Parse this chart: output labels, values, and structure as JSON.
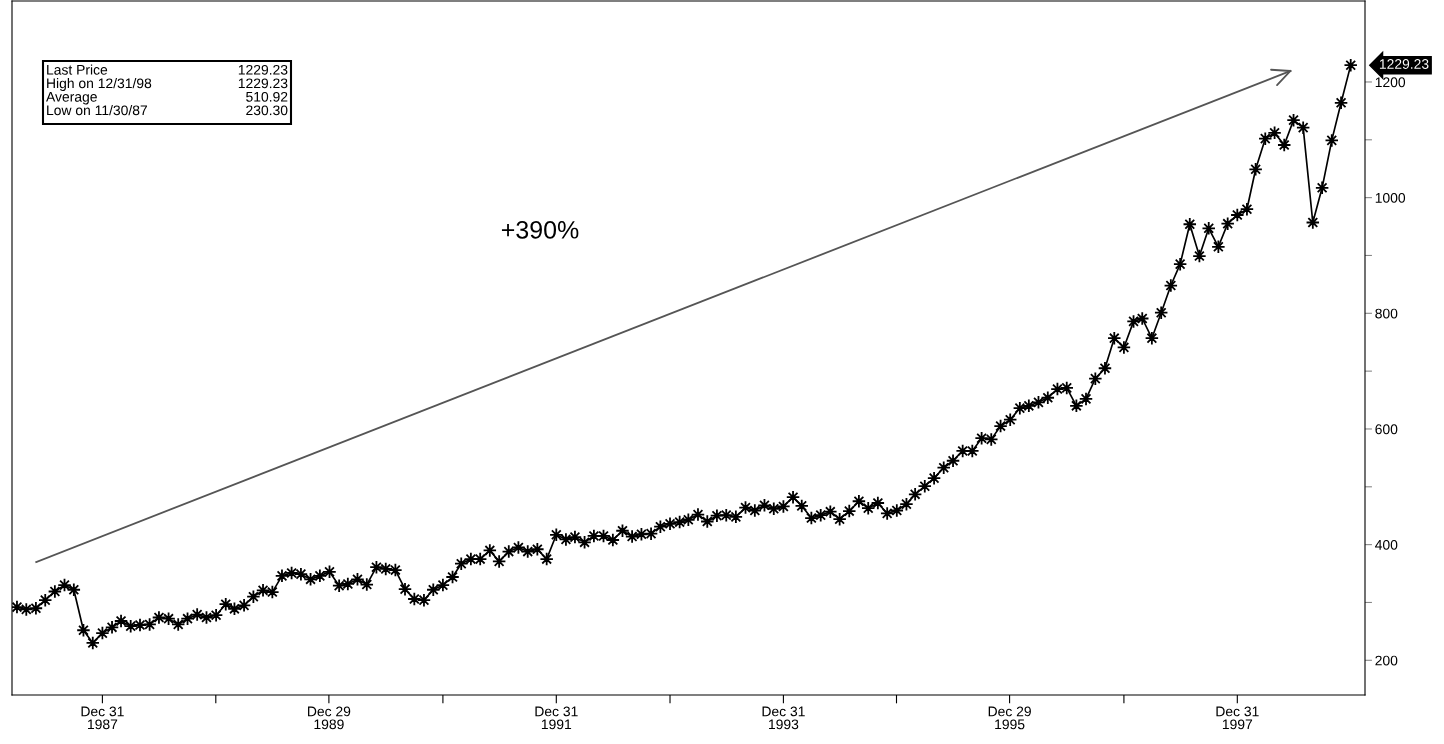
{
  "chart_data": {
    "type": "line",
    "grid": false,
    "x": [
      "1987-03-31",
      "1987-04-30",
      "1987-05-31",
      "1987-06-30",
      "1987-07-31",
      "1987-08-31",
      "1987-09-30",
      "1987-10-31",
      "1987-11-30",
      "1987-12-31",
      "1988-01-31",
      "1988-02-29",
      "1988-03-31",
      "1988-04-30",
      "1988-05-31",
      "1988-06-30",
      "1988-07-31",
      "1988-08-31",
      "1988-09-30",
      "1988-10-31",
      "1988-11-30",
      "1988-12-31",
      "1989-01-31",
      "1989-02-28",
      "1989-03-31",
      "1989-04-30",
      "1989-05-31",
      "1989-06-30",
      "1989-07-31",
      "1989-08-31",
      "1989-09-30",
      "1989-10-31",
      "1989-11-30",
      "1989-12-31",
      "1990-01-31",
      "1990-02-28",
      "1990-03-31",
      "1990-04-30",
      "1990-05-31",
      "1990-06-30",
      "1990-07-31",
      "1990-08-31",
      "1990-09-30",
      "1990-10-31",
      "1990-11-30",
      "1990-12-31",
      "1991-01-31",
      "1991-02-28",
      "1991-03-31",
      "1991-04-30",
      "1991-05-31",
      "1991-06-30",
      "1991-07-31",
      "1991-08-31",
      "1991-09-30",
      "1991-10-31",
      "1991-11-30",
      "1991-12-31",
      "1992-01-31",
      "1992-02-29",
      "1992-03-31",
      "1992-04-30",
      "1992-05-31",
      "1992-06-30",
      "1992-07-31",
      "1992-08-31",
      "1992-09-30",
      "1992-10-31",
      "1992-11-30",
      "1992-12-31",
      "1993-01-31",
      "1993-02-28",
      "1993-03-31",
      "1993-04-30",
      "1993-05-31",
      "1993-06-30",
      "1993-07-31",
      "1993-08-31",
      "1993-09-30",
      "1993-10-31",
      "1993-11-30",
      "1993-12-31",
      "1994-01-31",
      "1994-02-28",
      "1994-03-31",
      "1994-04-30",
      "1994-05-31",
      "1994-06-30",
      "1994-07-31",
      "1994-08-31",
      "1994-09-30",
      "1994-10-31",
      "1994-11-30",
      "1994-12-31",
      "1995-01-31",
      "1995-02-28",
      "1995-03-31",
      "1995-04-30",
      "1995-05-31",
      "1995-06-30",
      "1995-07-31",
      "1995-08-31",
      "1995-09-30",
      "1995-10-31",
      "1995-11-30",
      "1995-12-31",
      "1996-01-31",
      "1996-02-29",
      "1996-03-31",
      "1996-04-30",
      "1996-05-31",
      "1996-06-30",
      "1996-07-31",
      "1996-08-31",
      "1996-09-30",
      "1996-10-31",
      "1996-11-30",
      "1996-12-31",
      "1997-01-31",
      "1997-02-28",
      "1997-03-31",
      "1997-04-30",
      "1997-05-31",
      "1997-06-30",
      "1997-07-31",
      "1997-08-31",
      "1997-09-30",
      "1997-10-31",
      "1997-11-30",
      "1997-12-31",
      "1998-01-31",
      "1998-02-28",
      "1998-03-31",
      "1998-04-30",
      "1998-05-31",
      "1998-06-30",
      "1998-07-31",
      "1998-08-31",
      "1998-09-30",
      "1998-10-31",
      "1998-11-30",
      "1998-12-31"
    ],
    "series": [
      {
        "color": "#000000",
        "marker": "star",
        "values": [
          292,
          288,
          290,
          304,
          319,
          330,
          322,
          252,
          230,
          247,
          257,
          268,
          259,
          261,
          262,
          274,
          272,
          262,
          272,
          279,
          274,
          278,
          297,
          289,
          295,
          310,
          321,
          318,
          346,
          351,
          349,
          340,
          346,
          353,
          329,
          332,
          340,
          331,
          361,
          358,
          356,
          323,
          306,
          304,
          322,
          330,
          344,
          367,
          375,
          375,
          390,
          371,
          388,
          395,
          388,
          392,
          375,
          417,
          409,
          413,
          404,
          415,
          415,
          408,
          424,
          414,
          418,
          419,
          431,
          436,
          439,
          443,
          452,
          440,
          450,
          451,
          448,
          464,
          459,
          468,
          462,
          466,
          482,
          467,
          446,
          451,
          457,
          444,
          458,
          475,
          463,
          472,
          454,
          459,
          470,
          487,
          501,
          515,
          533,
          545,
          562,
          562,
          584,
          582,
          605,
          616,
          636,
          640,
          646,
          654,
          669,
          671,
          640,
          652,
          687,
          705,
          757,
          741,
          786,
          791,
          757,
          801,
          848,
          885,
          954,
          899,
          947,
          915,
          955,
          970,
          980,
          1049,
          1102,
          1112,
          1091,
          1134,
          1121,
          957,
          1017,
          1099,
          1164,
          1229
        ]
      },
      {
        "type": "line",
        "color": "#555555",
        "marker": "none",
        "x": [
          "1987-06-01",
          "1998-06-20"
        ],
        "values": [
          370,
          1219
        ]
      }
    ],
    "xlim": [
      "1987-03-15",
      "1999-02-15"
    ],
    "xticks": [
      {
        "value": "1987-12-31",
        "label": "Dec 31\n1987"
      },
      {
        "value": "1988-12-30",
        "label": null
      },
      {
        "value": "1989-12-29",
        "label": "Dec 29\n1989"
      },
      {
        "value": "1990-12-31",
        "label": null
      },
      {
        "value": "1991-12-31",
        "label": "Dec 31\n1991"
      },
      {
        "value": "1992-12-31",
        "label": null
      },
      {
        "value": "1993-12-31",
        "label": "Dec 31\n1993"
      },
      {
        "value": "1994-12-30",
        "label": null
      },
      {
        "value": "1995-12-29",
        "label": "Dec 29\n1995"
      },
      {
        "value": "1996-12-31",
        "label": null
      },
      {
        "value": "1997-12-31",
        "label": "Dec 31\n1997"
      }
    ],
    "ylim": [
      140,
      1340
    ],
    "yticks": [
      200,
      {
        "value": 300,
        "label": null
      },
      400,
      {
        "value": 500,
        "label": null
      },
      600,
      {
        "value": 700,
        "label": null
      },
      800,
      {
        "value": 900,
        "label": null
      },
      1000,
      {
        "value": 1100,
        "label": null
      },
      1200
    ],
    "annotations": [
      "Last Price",
      "1229.23",
      "High on 12/31/98",
      "1229.23",
      "Average",
      "510.92",
      "Low on 11/30/87",
      "230.30",
      "+390%",
      "1229.23"
    ]
  }
}
